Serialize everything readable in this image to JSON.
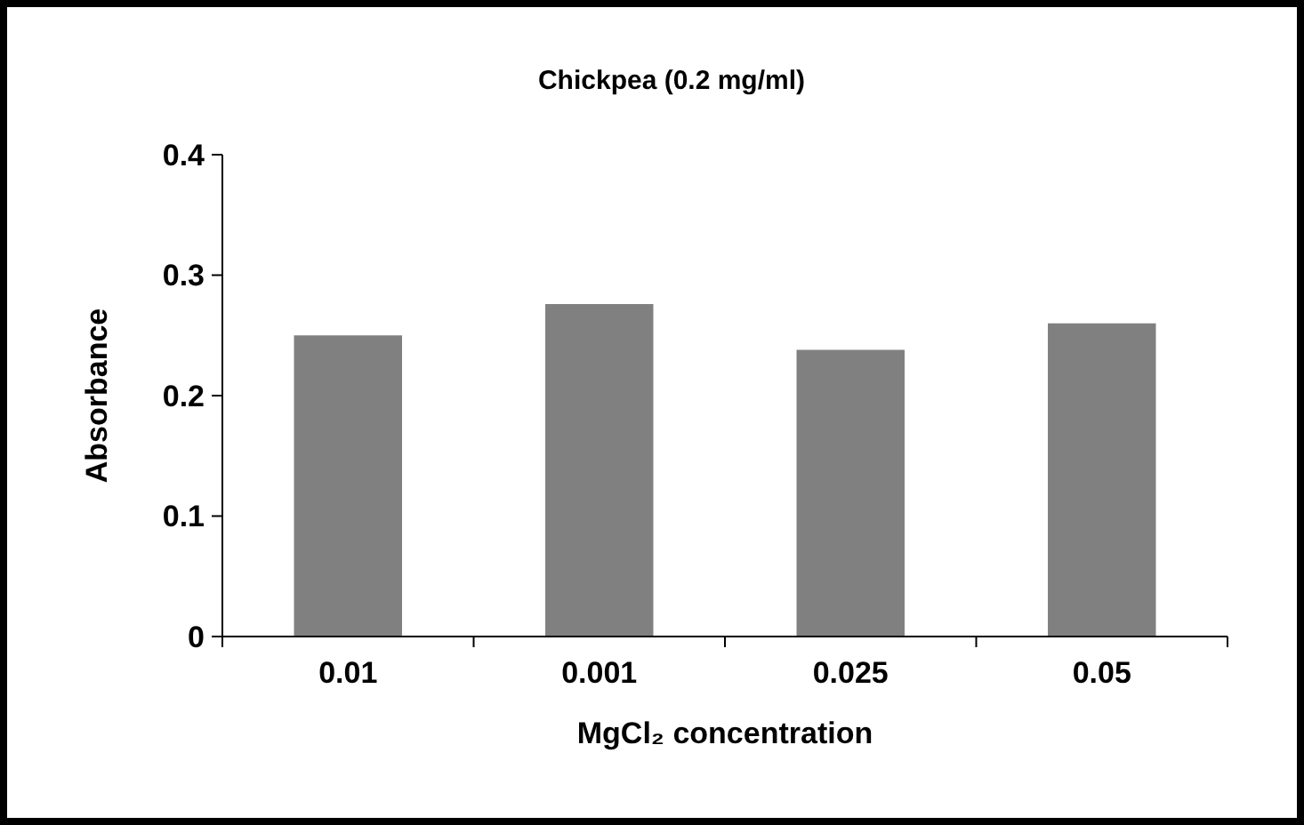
{
  "chart_data": {
    "type": "bar",
    "title": "Chickpea (0.2 mg/ml)",
    "xlabel": "MgCl₂ concentration",
    "ylabel": "Absorbance",
    "categories": [
      "0.01",
      "0.001",
      "0.025",
      "0.05"
    ],
    "values": [
      0.25,
      0.276,
      0.238,
      0.26
    ],
    "color": "#808080",
    "ylim": [
      0,
      0.4
    ],
    "yticks": [
      {
        "value": 0,
        "label": "0"
      },
      0.1,
      0.2,
      0.3,
      0.4
    ],
    "grid": false
  }
}
